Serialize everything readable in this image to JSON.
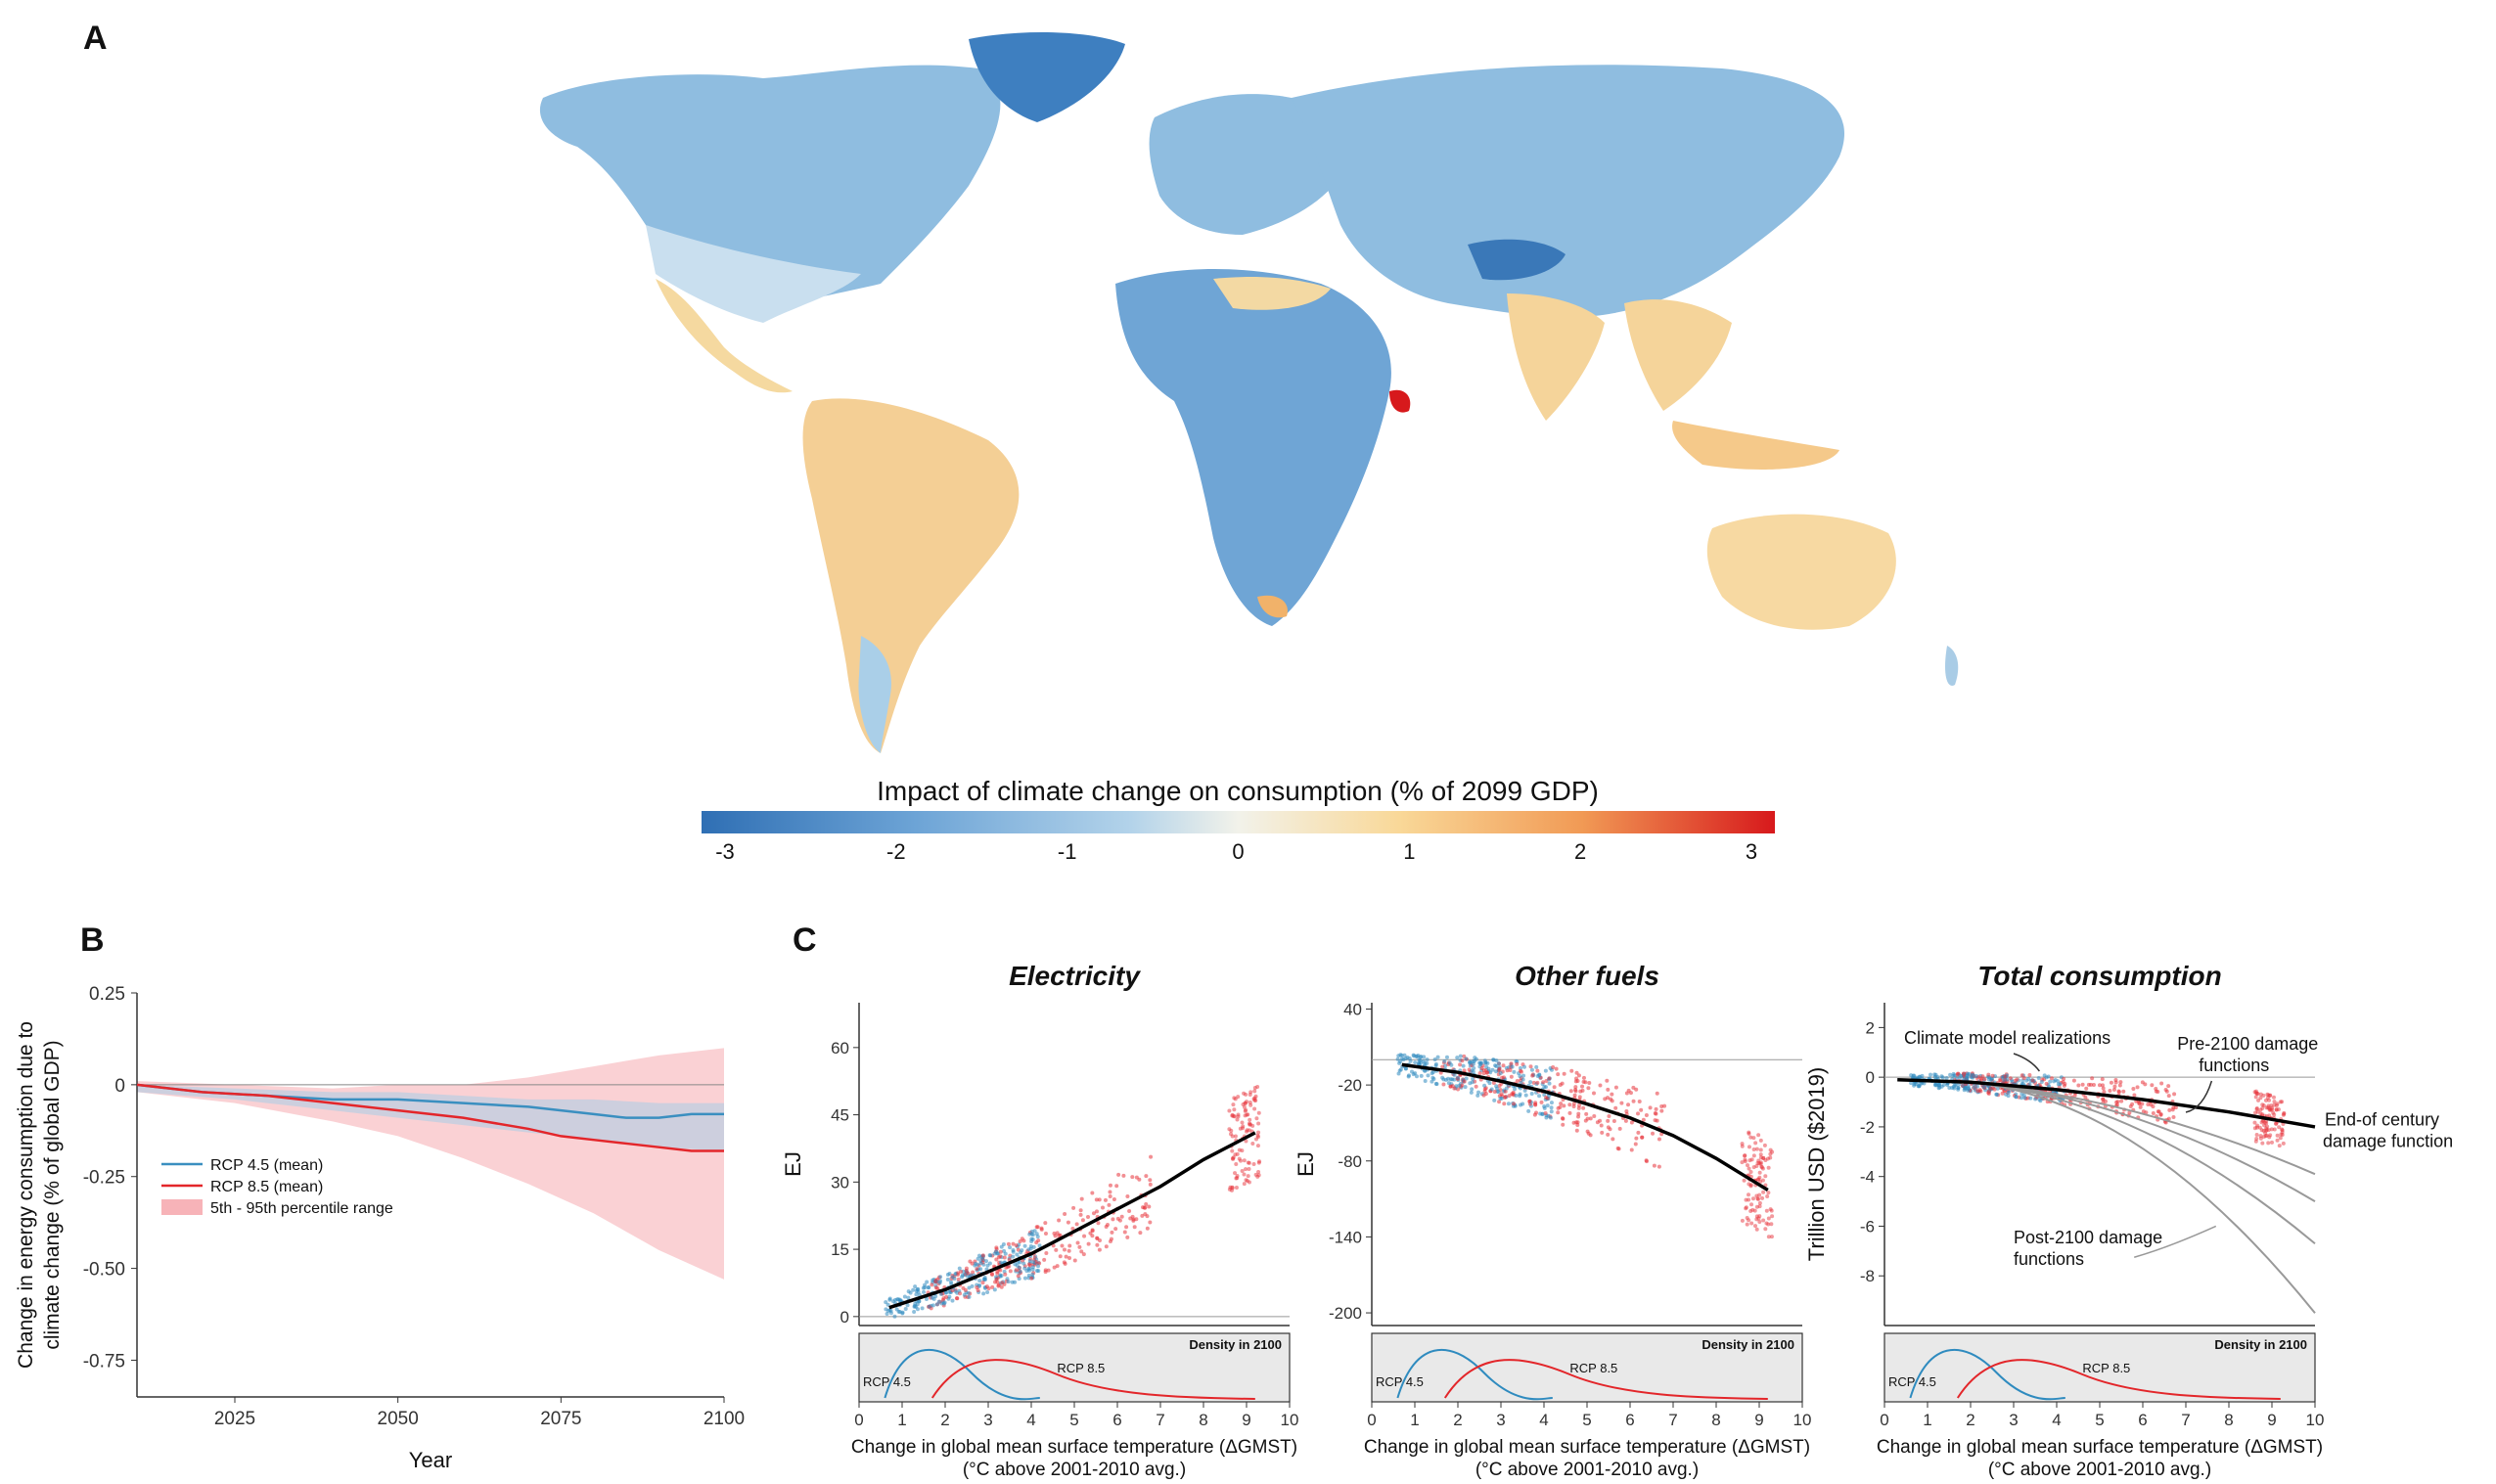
{
  "panels": {
    "a": {
      "letter": "A"
    },
    "b": {
      "letter": "B"
    },
    "c": {
      "letter": "C"
    }
  },
  "colorbar": {
    "title": "Impact of climate change on consumption (% of 2099 GDP)",
    "ticks": [
      "-3",
      "-2",
      "-1",
      "0",
      "1",
      "2",
      "3"
    ],
    "colors": [
      "#2f6fb4",
      "#6da4d6",
      "#b3d3ea",
      "#f2f2ea",
      "#f9d898",
      "#f19a55",
      "#d7191c"
    ]
  },
  "chart_data": [
    {
      "id": "A",
      "type": "heatmap",
      "title": "",
      "scale": {
        "title": "Impact of climate change on consumption (% of 2099 GDP)",
        "min": -3,
        "max": 3
      },
      "note": "world map of regional impacts"
    },
    {
      "id": "B",
      "type": "line",
      "xlabel": "Year",
      "ylabel": "Change in energy consumption due to climate change (% of global GDP)",
      "xlim": [
        2010,
        2100
      ],
      "ylim": [
        -0.85,
        0.25
      ],
      "xticks": [
        2025,
        2050,
        2075,
        2100
      ],
      "yticks": [
        0.25,
        0,
        -0.25,
        -0.5,
        -0.75
      ],
      "ytick_labels": [
        "0.25",
        "0",
        "-0.25",
        "-0.50",
        "-0.75"
      ],
      "legend": [
        "RCP 4.5 (mean)",
        "RCP 8.5 (mean)",
        "5th - 95th percentile range"
      ],
      "series": [
        {
          "name": "RCP 4.5 (mean)",
          "color": "#3a8fc0",
          "x": [
            2010,
            2020,
            2030,
            2040,
            2050,
            2060,
            2070,
            2075,
            2080,
            2085,
            2090,
            2095,
            2100
          ],
          "values": [
            0,
            -0.02,
            -0.03,
            -0.04,
            -0.04,
            -0.05,
            -0.06,
            -0.07,
            -0.08,
            -0.09,
            -0.09,
            -0.08,
            -0.08
          ]
        },
        {
          "name": "RCP 8.5 (mean)",
          "color": "#e3262a",
          "x": [
            2010,
            2020,
            2030,
            2040,
            2050,
            2060,
            2070,
            2075,
            2080,
            2085,
            2090,
            2095,
            2100
          ],
          "values": [
            0,
            -0.02,
            -0.03,
            -0.05,
            -0.07,
            -0.09,
            -0.12,
            -0.14,
            -0.15,
            -0.16,
            -0.17,
            -0.18,
            -0.18
          ]
        }
      ],
      "band": {
        "name": "5th - 95th percentile range",
        "x": [
          2010,
          2025,
          2040,
          2050,
          2060,
          2070,
          2080,
          2090,
          2100
        ],
        "upper": [
          0.01,
          0.0,
          -0.01,
          0.0,
          0.0,
          0.02,
          0.05,
          0.08,
          0.1
        ],
        "lower": [
          -0.02,
          -0.05,
          -0.1,
          -0.14,
          -0.2,
          -0.27,
          -0.35,
          -0.45,
          -0.53
        ]
      }
    },
    {
      "id": "C1",
      "type": "scatter",
      "title": "Electricity",
      "ylabel": "EJ",
      "xlabel": "Change in global mean surface temperature (ΔGMST)",
      "xlabel2": "(°C above 2001-2010 avg.)",
      "xlim": [
        0,
        10
      ],
      "ylim": [
        -2,
        70
      ],
      "xticks": [
        0,
        1,
        2,
        3,
        4,
        5,
        6,
        7,
        8,
        9,
        10
      ],
      "yticks": [
        0,
        15,
        30,
        45,
        60
      ],
      "fit": {
        "x": [
          0.7,
          2,
          3,
          4,
          5,
          6,
          7,
          8,
          9.2
        ],
        "y": [
          2,
          6,
          10,
          14,
          19,
          24,
          29,
          35,
          41
        ]
      },
      "density": {
        "label": "Density in 2100",
        "rcp45": "RCP 4.5",
        "rcp85": "RCP 8.5"
      }
    },
    {
      "id": "C2",
      "type": "scatter",
      "title": "Other fuels",
      "ylabel": "EJ",
      "xlabel": "Change in global mean surface temperature (ΔGMST)",
      "xlabel2": "(°C above 2001-2010 avg.)",
      "xlim": [
        0,
        10
      ],
      "ylim": [
        -210,
        45
      ],
      "xticks": [
        0,
        1,
        2,
        3,
        4,
        5,
        6,
        7,
        8,
        9,
        10
      ],
      "yticks": [
        40,
        -20,
        -80,
        -140,
        -200
      ],
      "fit": {
        "x": [
          0.7,
          2,
          3,
          4,
          5,
          6,
          7,
          8,
          9.2
        ],
        "y": [
          -4,
          -10,
          -17,
          -25,
          -35,
          -46,
          -60,
          -78,
          -103
        ]
      },
      "density": {
        "label": "Density in 2100",
        "rcp45": "RCP 4.5",
        "rcp85": "RCP 8.5"
      }
    },
    {
      "id": "C3",
      "type": "scatter",
      "title": "Total consumption",
      "ylabel": "Trillion USD ($2019)",
      "xlabel": "Change in global mean surface temperature (ΔGMST)",
      "xlabel2": "(°C above 2001-2010 avg.)",
      "xlim": [
        0,
        10
      ],
      "ylim": [
        -10,
        3
      ],
      "xticks": [
        0,
        1,
        2,
        3,
        4,
        5,
        6,
        7,
        8,
        9,
        10
      ],
      "yticks": [
        2,
        0,
        -2,
        -4,
        -6,
        -8
      ],
      "fit": {
        "x": [
          0.3,
          2,
          4,
          6,
          8,
          10
        ],
        "y": [
          -0.1,
          -0.2,
          -0.5,
          -0.9,
          -1.4,
          -2.0
        ]
      },
      "post2100": [
        {
          "x": [
            5,
            10
          ],
          "y": [
            -1.0,
            -3.9
          ]
        },
        {
          "x": [
            5,
            10
          ],
          "y": [
            -1.2,
            -5.0
          ]
        },
        {
          "x": [
            5,
            10
          ],
          "y": [
            -1.5,
            -6.7
          ]
        },
        {
          "x": [
            5,
            10
          ],
          "y": [
            -1.8,
            -9.5
          ]
        }
      ],
      "annotations": {
        "realizations": "Climate model realizations",
        "pre2100_l1": "Pre-2100 damage",
        "pre2100_l2": "functions",
        "eoc_l1": "End-of century",
        "eoc_l2": "damage function",
        "post2100_l1": "Post-2100 damage",
        "post2100_l2": "functions"
      },
      "density": {
        "label": "Density in 2100",
        "rcp45": "RCP 4.5",
        "rcp85": "RCP 8.5"
      }
    }
  ]
}
